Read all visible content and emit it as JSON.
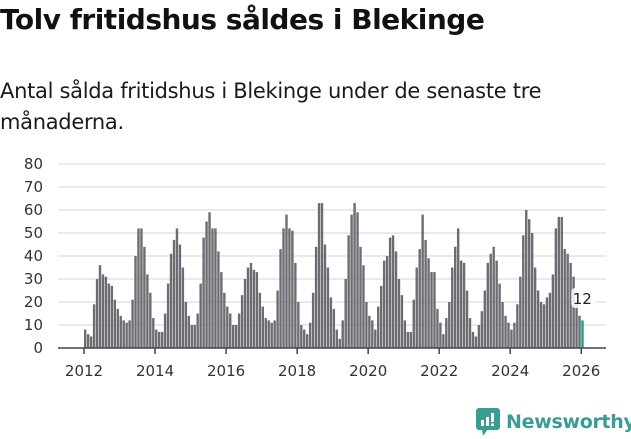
{
  "header": {
    "title": "Tolv fritidshus såldes i Blekinge",
    "subtitle": "Antal sålda fritidshus i Blekinge under de senaste tre månaderna."
  },
  "branding": {
    "logo_text": "Newsworthy",
    "logo_icon": "bar-chart-speech-bubble-icon"
  },
  "colors": {
    "bar": "#6d6c72",
    "highlight": "#1a9e8f",
    "grid": "#e3e3e3",
    "axis": "#444444",
    "brand": "#3a9c92"
  },
  "chart_data": {
    "type": "bar",
    "title": "Tolv fritidshus såldes i Blekinge",
    "subtitle": "Antal sålda fritidshus i Blekinge under de senaste tre månaderna.",
    "xlabel": "",
    "ylabel": "",
    "ylim": [
      0,
      80
    ],
    "yticks": [
      0,
      10,
      20,
      30,
      40,
      50,
      60,
      70,
      80
    ],
    "xticks": [
      "2012",
      "2014",
      "2016",
      "2018",
      "2020",
      "2022",
      "2024",
      "2026"
    ],
    "grid": true,
    "legend": "none",
    "start": "2012-01",
    "frequency": "monthly",
    "highlight_last": true,
    "annotation": {
      "label": "12",
      "target": "2026-01"
    },
    "values": [
      8,
      6,
      5,
      19,
      30,
      36,
      32,
      31,
      28,
      27,
      21,
      17,
      14,
      12,
      11,
      12,
      21,
      40,
      52,
      52,
      44,
      32,
      24,
      13,
      8,
      7,
      7,
      15,
      28,
      41,
      47,
      52,
      45,
      35,
      20,
      14,
      10,
      10,
      15,
      28,
      48,
      55,
      59,
      52,
      52,
      42,
      33,
      24,
      18,
      15,
      10,
      10,
      15,
      23,
      30,
      35,
      37,
      34,
      33,
      24,
      18,
      13,
      12,
      11,
      12,
      25,
      43,
      52,
      58,
      52,
      51,
      37,
      20,
      10,
      8,
      6,
      11,
      24,
      44,
      63,
      63,
      45,
      35,
      22,
      17,
      8,
      4,
      12,
      30,
      49,
      58,
      63,
      59,
      44,
      36,
      20,
      14,
      12,
      8,
      18,
      27,
      38,
      40,
      48,
      49,
      42,
      30,
      23,
      12,
      7,
      7,
      21,
      35,
      43,
      58,
      47,
      39,
      33,
      33,
      17,
      11,
      6,
      13,
      20,
      35,
      44,
      52,
      38,
      37,
      25,
      13,
      7,
      5,
      10,
      16,
      25,
      37,
      41,
      44,
      38,
      28,
      20,
      14,
      11,
      8,
      11,
      19,
      31,
      49,
      60,
      56,
      50,
      35,
      25,
      20,
      19,
      22,
      24,
      32,
      52,
      57,
      57,
      43,
      41,
      37,
      31,
      19,
      14,
      12
    ]
  }
}
